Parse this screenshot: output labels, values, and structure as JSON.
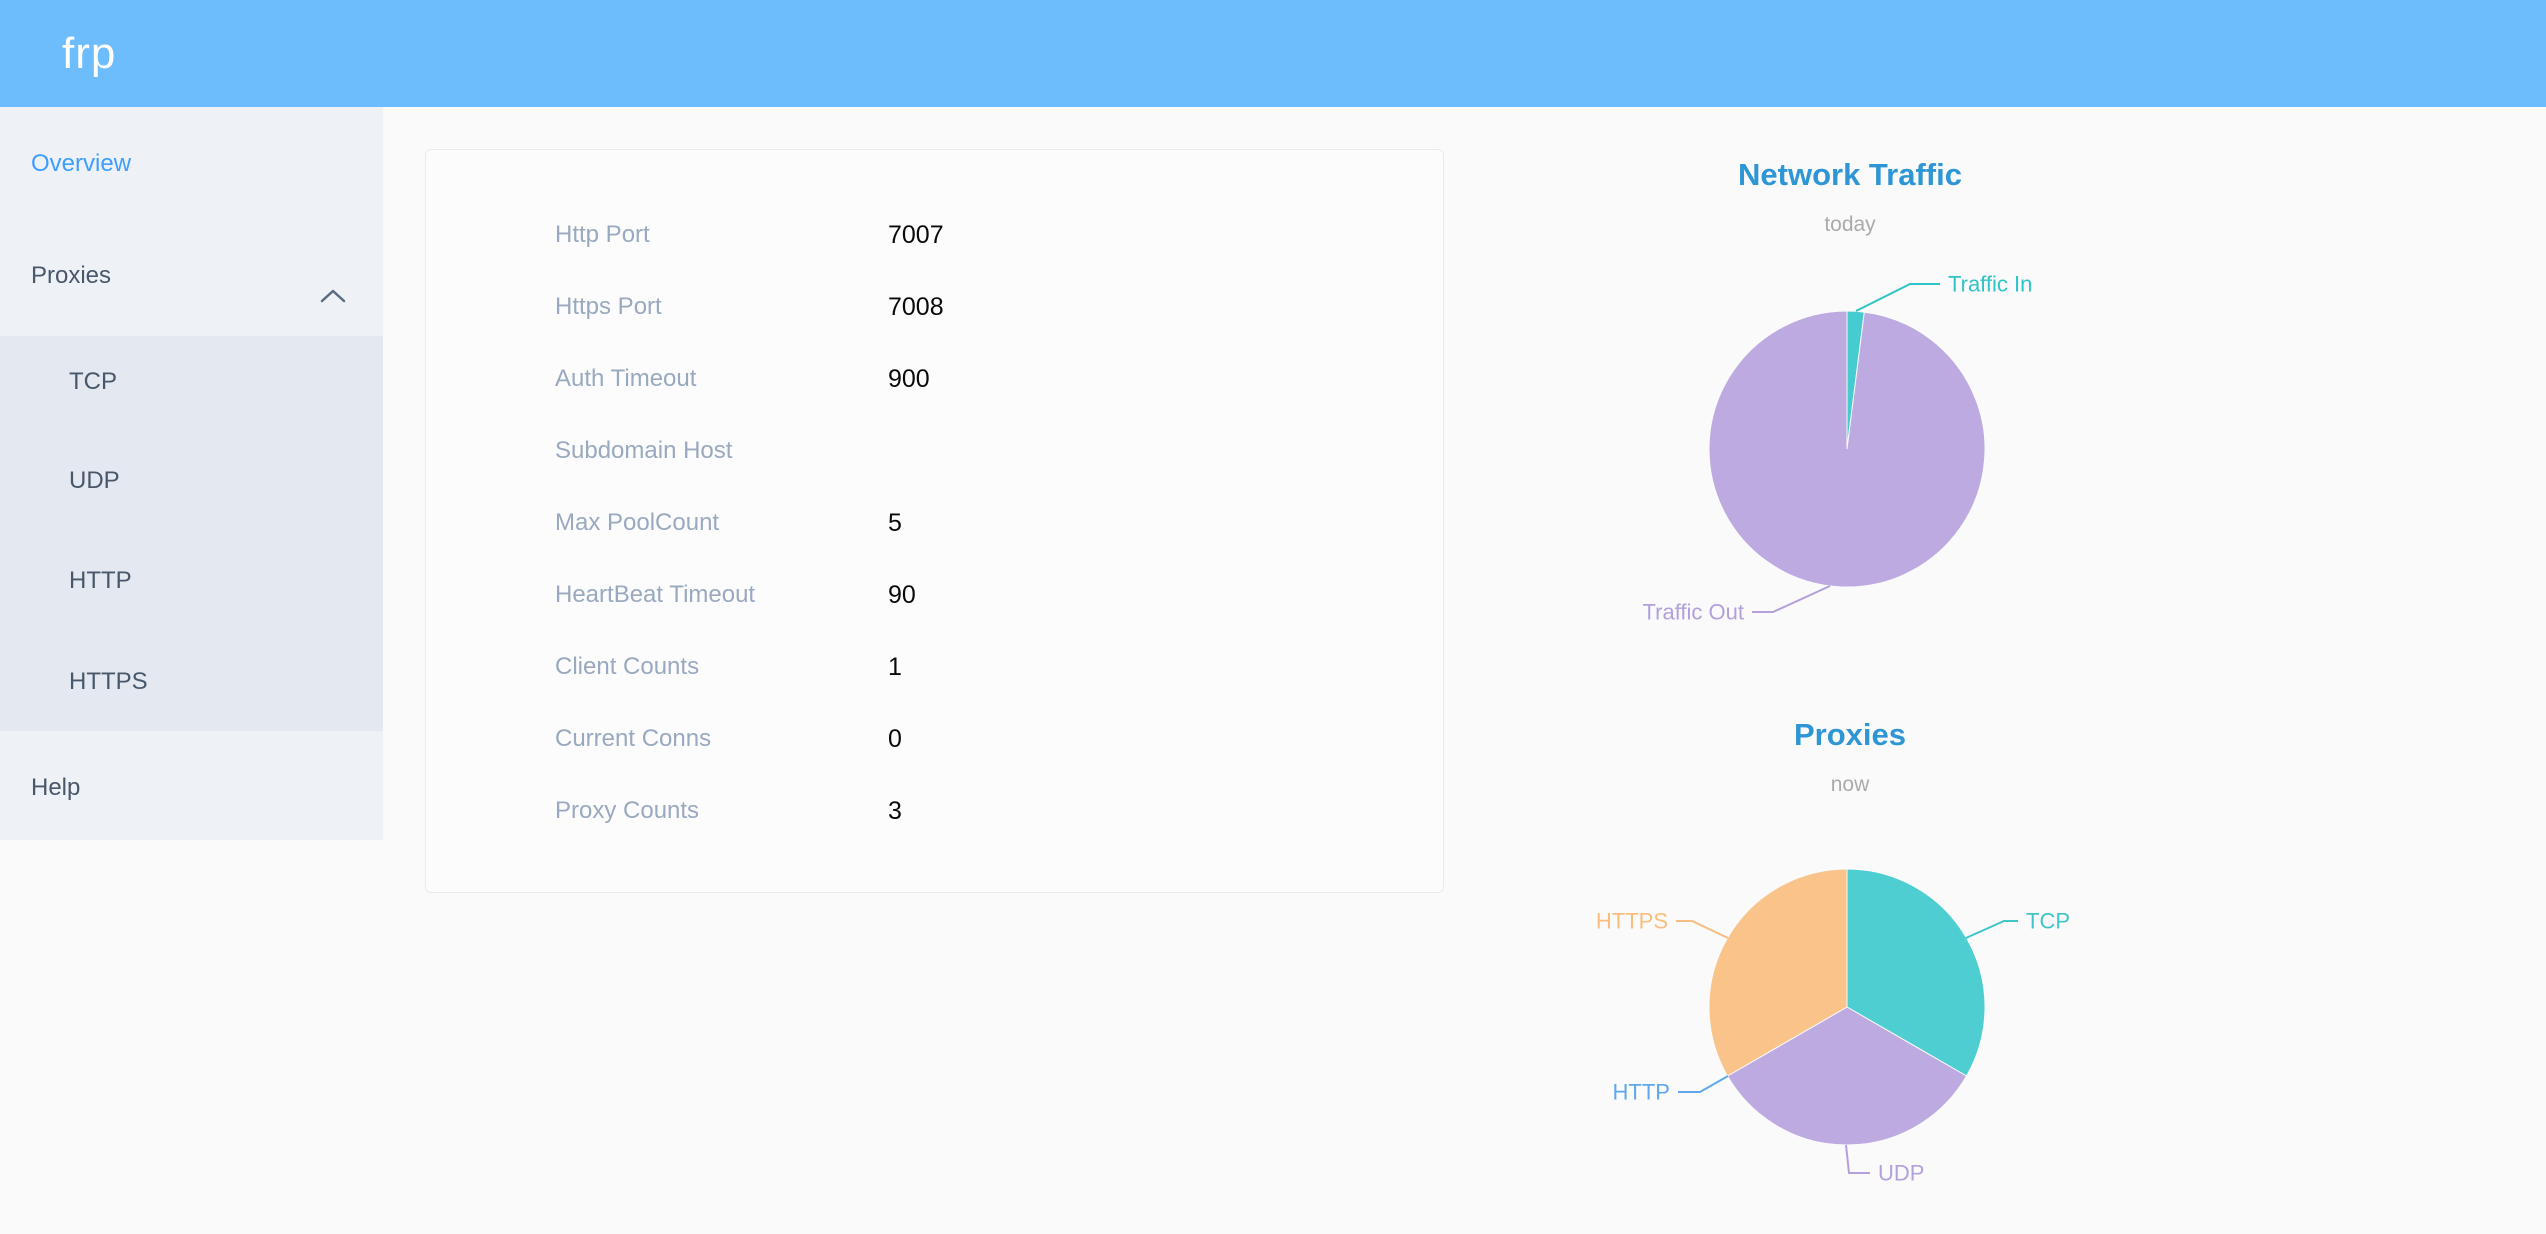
{
  "header": {
    "logo": "frp"
  },
  "sidebar": {
    "items": [
      {
        "label": "Overview",
        "active": true
      },
      {
        "label": "Proxies",
        "expanded": true,
        "children": [
          {
            "label": "TCP"
          },
          {
            "label": "UDP"
          },
          {
            "label": "HTTP"
          },
          {
            "label": "HTTPS"
          }
        ]
      },
      {
        "label": "Help"
      }
    ]
  },
  "icons": {
    "proxies_expand": "chevron-up"
  },
  "overview_card": {
    "rows": [
      {
        "label": "Http Port",
        "value": "7007"
      },
      {
        "label": "Https Port",
        "value": "7008"
      },
      {
        "label": "Auth Timeout",
        "value": "900"
      },
      {
        "label": "Subdomain Host",
        "value": ""
      },
      {
        "label": "Max PoolCount",
        "value": "5"
      },
      {
        "label": "HeartBeat Timeout",
        "value": "90"
      },
      {
        "label": "Client Counts",
        "value": "1"
      },
      {
        "label": "Current Conns",
        "value": "0"
      },
      {
        "label": "Proxy Counts",
        "value": "3"
      }
    ]
  },
  "chart_data": [
    {
      "type": "pie",
      "title": "Network Traffic",
      "subtitle": "today",
      "legend": "none",
      "labels": "outside-leader-lines",
      "values_unit": "percent share (estimated from slice angles; no numbers shown)",
      "slices": [
        {
          "label": "Traffic In",
          "value": 2,
          "color": "#45cbd0",
          "label_color": "#2fc4c8"
        },
        {
          "label": "Traffic Out",
          "value": 98,
          "color": "#bcaae0",
          "label_color": "#b3a0dd"
        }
      ]
    },
    {
      "type": "pie",
      "title": "Proxies",
      "subtitle": "now",
      "legend": "none",
      "labels": "outside-leader-lines",
      "values_unit": "proxy count",
      "slices": [
        {
          "label": "TCP",
          "value": 1,
          "color": "#4fced1",
          "label_color": "#3ec6c9"
        },
        {
          "label": "UDP",
          "value": 1,
          "color": "#bcaae0",
          "label_color": "#b3a0dd"
        },
        {
          "label": "HTTP",
          "value": 0,
          "color": "#5fa8ec",
          "label_color": "#5fa8ec"
        },
        {
          "label": "HTTPS",
          "value": 1,
          "color": "#f9c389",
          "label_color": "#f8bd7f"
        }
      ]
    }
  ],
  "colors": {
    "header_bg": "#6dbdfd",
    "logo_text": "#ffffff",
    "sidebar_bg": "#eef1f6",
    "submenu_bg": "#e4e8f1",
    "sidebar_text": "#48576a",
    "active_link": "#3e9efb",
    "page_bg": "#fafafa",
    "card_bg": "#fcfcfd",
    "card_border": "#e8eaf0",
    "label_gray": "#99a9bf",
    "value_text": "#0a0a0a",
    "chart_title": "#2e96d5",
    "chart_subtitle": "#aaaaaa"
  }
}
